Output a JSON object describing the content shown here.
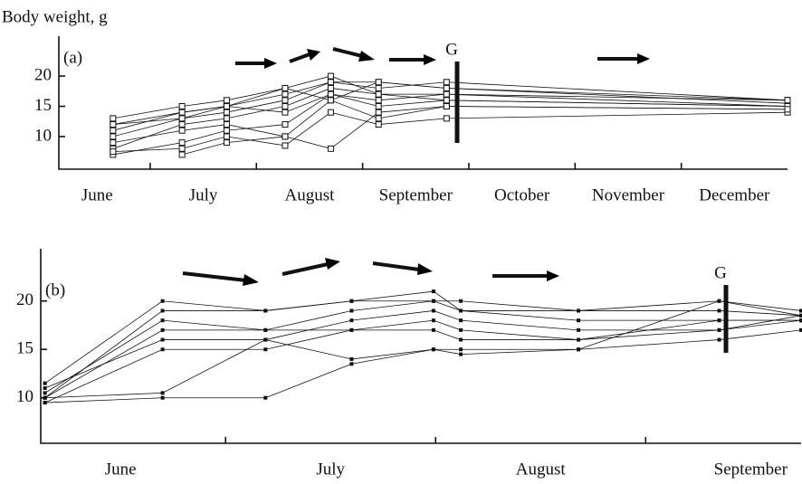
{
  "annotations": {
    "y_label": "Body weight, g"
  },
  "chart_data": [
    {
      "type": "line",
      "panel_label": "(a)",
      "group_label": "G",
      "marker": "open-square",
      "categories": [
        "June",
        "July",
        "August",
        "September",
        "October",
        "November",
        "December"
      ],
      "xlim": [
        0.14,
        7.0
      ],
      "xticks": [
        1,
        2,
        3,
        4,
        5,
        6
      ],
      "ylim": [
        4.6,
        26.6
      ],
      "yticks": [
        10,
        15,
        20
      ],
      "x": [
        0.65,
        1.3,
        1.72,
        2.27,
        2.7,
        3.15,
        3.79,
        7.0
      ],
      "series": [
        {
          "color": "#111111",
          "values": [
            7,
            9,
            11,
            12,
            17,
            15,
            16,
            15
          ]
        },
        {
          "color": "#111111",
          "values": [
            8,
            12,
            13,
            15,
            18,
            17,
            17,
            16
          ]
        },
        {
          "color": "#111111",
          "values": [
            10,
            13,
            14,
            16,
            19,
            18,
            19,
            16
          ]
        },
        {
          "color": "#111111",
          "values": [
            12,
            14,
            15,
            17,
            19,
            19,
            18,
            15.5
          ]
        },
        {
          "color": "#111111",
          "values": [
            13,
            15,
            16,
            18,
            20,
            17,
            16,
            15
          ]
        },
        {
          "color": "#111111",
          "values": [
            9,
            11,
            12,
            10,
            16,
            13,
            15,
            14.5
          ]
        },
        {
          "color": "#111111",
          "values": [
            7.5,
            8,
            10,
            8.5,
            14,
            12,
            13,
            14
          ]
        },
        {
          "color": "#111111",
          "values": [
            11,
            14,
            15,
            14,
            17,
            16,
            17,
            15
          ]
        },
        {
          "color": "#111111",
          "values": [
            null,
            7,
            9,
            10,
            8,
            14,
            15,
            14.5
          ]
        },
        {
          "color": "#111111",
          "values": [
            12,
            13,
            15,
            18,
            16,
            19,
            18,
            16
          ]
        }
      ]
    },
    {
      "type": "line",
      "panel_label": "(b)",
      "group_label": "G",
      "marker": "filled-square",
      "categories": [
        "June",
        "July",
        "August",
        "September"
      ],
      "xlim": [
        0.12,
        3.74
      ],
      "xticks": [
        1,
        2,
        3
      ],
      "ylim": [
        5.3,
        25.4
      ],
      "yticks": [
        10,
        15,
        20
      ],
      "x": [
        0.14,
        0.7,
        1.19,
        1.6,
        1.99,
        2.12,
        2.68,
        3.35,
        3.74
      ],
      "series": [
        {
          "color": "#111111",
          "values": [
            10,
            19,
            19,
            20,
            21,
            19,
            19,
            19,
            18.5
          ]
        },
        {
          "color": "#111111",
          "values": [
            10.5,
            18,
            17,
            19,
            20,
            19,
            18,
            18,
            18
          ]
        },
        {
          "color": "#111111",
          "values": [
            11,
            16,
            16,
            18,
            19,
            18,
            17,
            17,
            18
          ]
        },
        {
          "color": "#111111",
          "values": [
            9.5,
            15,
            15,
            17,
            17,
            16,
            16,
            18,
            18
          ]
        },
        {
          "color": "#111111",
          "values": [
            10,
            10.5,
            16,
            14,
            15,
            15,
            15,
            16,
            17
          ]
        },
        {
          "color": "#111111",
          "values": [
            11.5,
            20,
            19,
            20,
            20,
            20,
            19,
            20,
            19
          ]
        },
        {
          "color": "#111111",
          "values": [
            10,
            17,
            17,
            17,
            18,
            17,
            16,
            17,
            18.5
          ]
        },
        {
          "color": "#111111",
          "values": [
            9.5,
            10,
            10,
            13.5,
            15,
            14.5,
            15,
            20,
            18.5
          ]
        }
      ]
    }
  ]
}
